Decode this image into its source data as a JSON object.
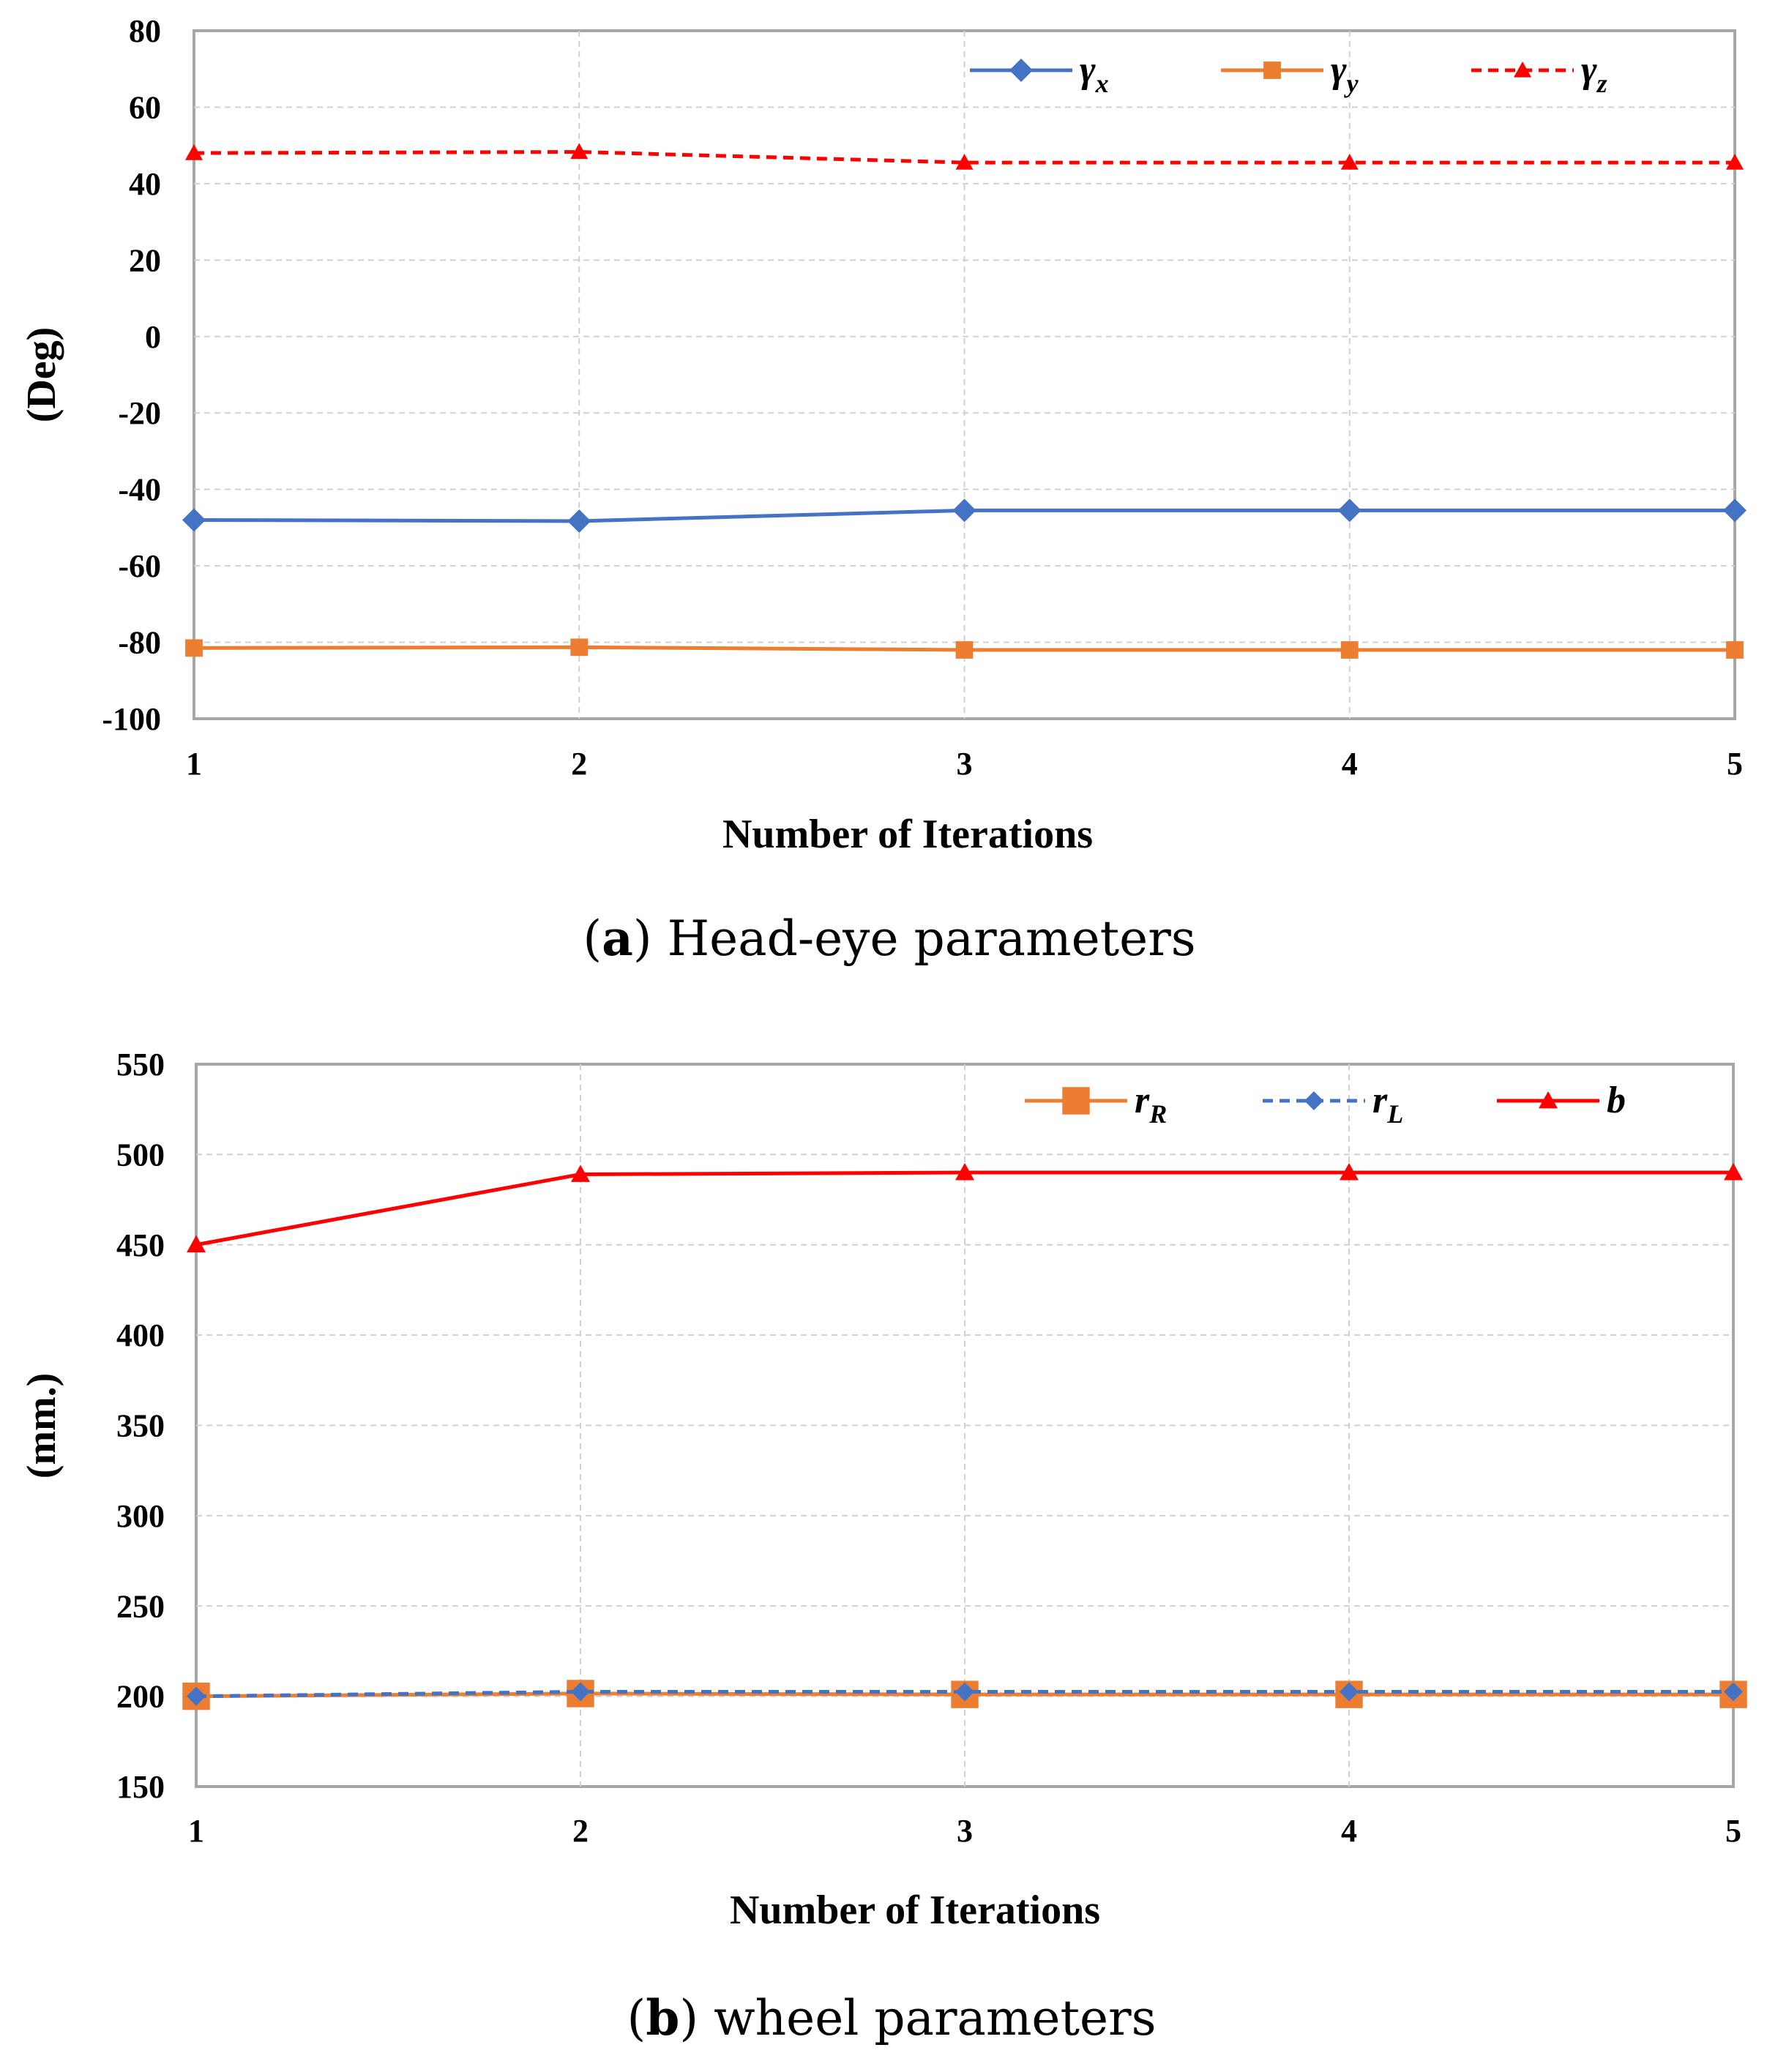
{
  "chart_data": [
    {
      "type": "line",
      "x": [
        1,
        2,
        3,
        4,
        5
      ],
      "xlabel": "Number of Iterations",
      "ylabel": "(Deg)",
      "ylim": [
        -100,
        80
      ],
      "yticks": [
        80,
        60,
        40,
        20,
        0,
        -20,
        -40,
        -60,
        -80,
        -100
      ],
      "grid": true,
      "legend_position": "top-right",
      "caption": {
        "letter": "a",
        "text": " Head-eye parameters"
      },
      "series": [
        {
          "name": "γx",
          "symbol": "γ",
          "sub": "x",
          "color": "#4472C4",
          "marker": "diamond",
          "dash": "solid",
          "values": [
            -48,
            -48.3,
            -45.5,
            -45.5,
            -45.5
          ]
        },
        {
          "name": "γy",
          "symbol": "γ",
          "sub": "y",
          "color": "#ED7D31",
          "marker": "square",
          "dash": "solid",
          "values": [
            -81.5,
            -81.3,
            -82,
            -82,
            -82
          ]
        },
        {
          "name": "γz",
          "symbol": "γ",
          "sub": "z",
          "color": "#FF0000",
          "marker": "triangle",
          "dash": "dashed",
          "values": [
            48,
            48.3,
            45.5,
            45.5,
            45.5
          ]
        }
      ]
    },
    {
      "type": "line",
      "x": [
        1,
        2,
        3,
        4,
        5
      ],
      "xlabel": "Number of Iterations",
      "ylabel": "(mm.)",
      "ylim": [
        150,
        550
      ],
      "yticks": [
        550,
        500,
        450,
        400,
        350,
        300,
        250,
        200,
        150
      ],
      "grid": true,
      "legend_position": "top-right",
      "caption": {
        "letter": "b",
        "text": " wheel parameters"
      },
      "series": [
        {
          "name": "rR",
          "symbol": "r",
          "sub": "R",
          "color": "#ED7D31",
          "marker": "square",
          "dash": "solid",
          "values": [
            200,
            201.5,
            201,
            201,
            201
          ]
        },
        {
          "name": "rL",
          "symbol": "r",
          "sub": "L",
          "color": "#4472C4",
          "marker": "diamond",
          "dash": "dashed",
          "values": [
            200,
            202.5,
            202.5,
            202.5,
            202.5
          ]
        },
        {
          "name": "b",
          "symbol": "b",
          "sub": "",
          "color": "#FF0000",
          "marker": "triangle",
          "dash": "solid",
          "values": [
            450,
            489,
            490,
            490,
            490
          ]
        }
      ]
    }
  ]
}
